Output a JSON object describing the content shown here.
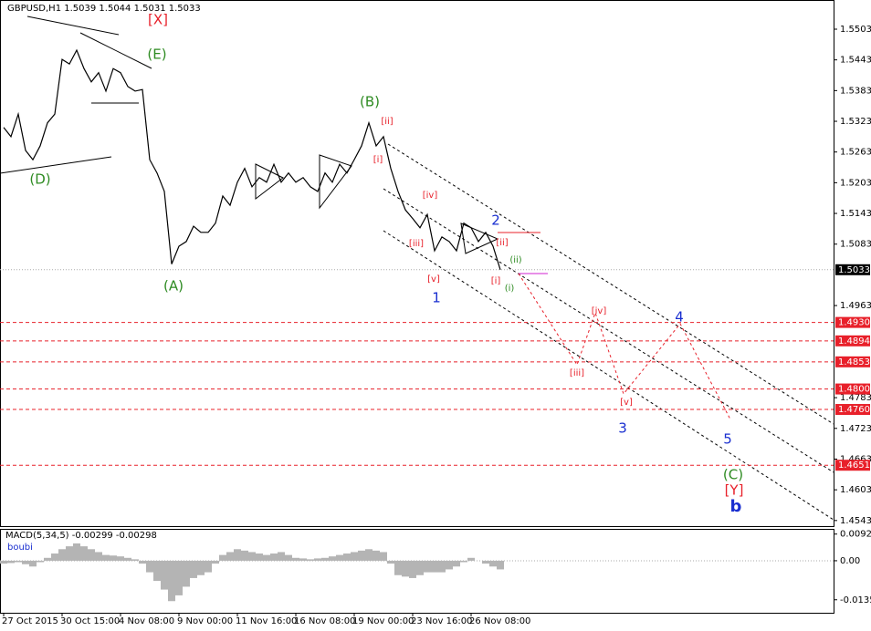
{
  "chart_data": [
    {
      "type": "line",
      "title": "GBPUSD,H1  1.5039 1.5044 1.5031 1.5033",
      "color": "#000000",
      "categories": [
        "27 Oct 2015",
        null,
        null,
        null,
        null,
        null,
        null,
        null,
        "30 Oct 15:00",
        null,
        null,
        null,
        null,
        null,
        null,
        null,
        "4 Nov 08:00",
        null,
        null,
        null,
        null,
        null,
        null,
        null,
        "9 Nov 00:00",
        null,
        null,
        null,
        null,
        null,
        null,
        null,
        "11 Nov 16:00",
        null,
        null,
        null,
        null,
        null,
        null,
        null,
        "16 Nov 08:00",
        null,
        null,
        null,
        null,
        null,
        null,
        null,
        "19 Nov 00:00",
        null,
        null,
        null,
        null,
        null,
        null,
        null,
        "23 Nov 16:00",
        null,
        null,
        null,
        null,
        null,
        null,
        null,
        "26 Nov 08:00",
        null,
        null,
        null,
        null
      ],
      "values": [
        1.5311,
        1.5293,
        1.5337,
        1.5266,
        1.5248,
        1.5275,
        1.532,
        1.5337,
        1.5444,
        1.5435,
        1.5462,
        1.5426,
        1.54,
        1.5418,
        1.5382,
        1.5426,
        1.5418,
        1.5391,
        1.5382,
        1.5385,
        1.5248,
        1.5222,
        1.5186,
        1.5044,
        1.5079,
        1.5088,
        1.5118,
        1.5106,
        1.5106,
        1.5124,
        1.5177,
        1.5159,
        1.5204,
        1.5231,
        1.5195,
        1.5213,
        1.5204,
        1.5239,
        1.5204,
        1.5222,
        1.5204,
        1.5213,
        1.5195,
        1.5186,
        1.5222,
        1.5204,
        1.5239,
        1.5222,
        1.5248,
        1.5275,
        1.532,
        1.5275,
        1.5293,
        1.5231,
        1.5186,
        1.515,
        1.5133,
        1.5115,
        1.5141,
        1.507,
        1.5097,
        1.5088,
        1.507,
        1.5124,
        1.5115,
        1.5088,
        1.5106,
        1.5079,
        1.5033
      ],
      "ylim": [
        1.4532,
        1.556
      ],
      "yticks": [
        1.5503,
        1.5443,
        1.5383,
        1.5323,
        1.5263,
        1.5203,
        1.5143,
        1.5083,
        1.4963,
        1.4783,
        1.4723,
        1.4663,
        1.4603,
        1.4543
      ],
      "levels": {
        "color": "#e8202a",
        "values": [
          {
            "value": 1.493,
            "label": "1.4930"
          },
          1.4894,
          1.4853,
          {
            "value": 1.48,
            "label": "1.4800"
          },
          {
            "value": 1.476,
            "label": "1.4760"
          },
          1.4651
        ]
      },
      "annotations": [
        {
          "text": "[X]",
          "color": "#e8202a"
        },
        {
          "text": "(E)",
          "color": "#2e8b22"
        },
        {
          "text": "(D)",
          "color": "#2e8b22"
        },
        {
          "text": "(A)",
          "color": "#2e8b22"
        },
        {
          "text": "(B)",
          "color": "#2e8b22"
        },
        {
          "text": "[ii]",
          "color": "#e8202a"
        },
        {
          "text": "[i]",
          "color": "#e8202a"
        },
        {
          "text": "[iv]",
          "color": "#e8202a"
        },
        {
          "text": "[iii]",
          "color": "#e8202a"
        },
        {
          "text": "[v]",
          "color": "#e8202a"
        },
        {
          "text": "1",
          "color": "#1a2fd0"
        },
        {
          "text": "2",
          "color": "#1a2fd0"
        },
        {
          "text": "[ii]",
          "color": "#e8202a"
        },
        {
          "text": "(ii)",
          "color": "#2e8b22"
        },
        {
          "text": "[i]",
          "color": "#e8202a"
        },
        {
          "text": "(i)",
          "color": "#2e8b22"
        },
        {
          "text": "[iv]",
          "color": "#e8202a"
        },
        {
          "text": "[iii]",
          "color": "#e8202a"
        },
        {
          "text": "[v]",
          "color": "#e8202a"
        },
        {
          "text": "3",
          "color": "#1a2fd0"
        },
        {
          "text": "4",
          "color": "#1a2fd0"
        },
        {
          "text": "5",
          "color": "#1a2fd0"
        },
        {
          "text": "(C)",
          "color": "#2e8b22"
        },
        {
          "text": "[Y]",
          "color": "#e8202a"
        },
        {
          "text": "b",
          "color": "#1a2fd0"
        }
      ]
    },
    {
      "type": "bar",
      "title": "MACD(5,34,5) -0.00299 -0.00298",
      "subtitle": "boubi",
      "color": "#b4b4b4",
      "values": [
        -0.001,
        -0.0008,
        -0.0005,
        -0.0012,
        -0.002,
        -0.0005,
        0.001,
        0.0025,
        0.004,
        0.005,
        0.006,
        0.005,
        0.004,
        0.003,
        0.002,
        0.0018,
        0.0015,
        0.001,
        0.0005,
        -0.001,
        -0.004,
        -0.007,
        -0.01,
        -0.014,
        -0.012,
        -0.009,
        -0.006,
        -0.005,
        -0.004,
        -0.001,
        0.002,
        0.003,
        0.004,
        0.0035,
        0.003,
        0.0025,
        0.002,
        0.0025,
        0.003,
        0.002,
        0.001,
        0.0008,
        0.0005,
        0.0008,
        0.001,
        0.0015,
        0.002,
        0.0025,
        0.003,
        0.0035,
        0.004,
        0.0035,
        0.003,
        -0.001,
        -0.005,
        -0.0055,
        -0.006,
        -0.005,
        -0.004,
        -0.004,
        -0.004,
        -0.003,
        -0.002,
        -0.0005,
        0.001,
        0,
        -0.001,
        -0.002,
        -0.003
      ],
      "ylim": [
        -0.01803,
        0.01104
      ],
      "yticks": [
        0.00924,
        {
          "value": 0,
          "label": "0.00"
        },
        -0.01353
      ]
    }
  ]
}
